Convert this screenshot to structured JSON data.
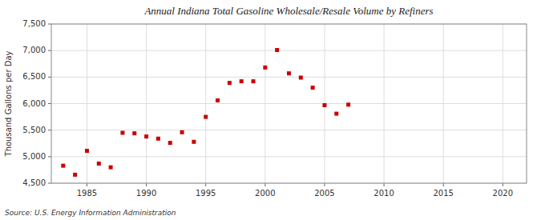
{
  "chart_data": {
    "type": "scatter",
    "title": "Annual Indiana Total Gasoline Wholesale/Resale Volume by Refiners",
    "ylabel": "Thousand Gallons per Day",
    "source": "Source: U.S. Energy Information Administration",
    "color": "#cc0000",
    "marker": "square",
    "grid": true,
    "x": [
      1983,
      1984,
      1985,
      1986,
      1987,
      1988,
      1989,
      1990,
      1991,
      1992,
      1993,
      1994,
      1995,
      1996,
      1997,
      1998,
      1999,
      2000,
      2001,
      2002,
      2003,
      2004,
      2005,
      2006,
      2007
    ],
    "values": [
      4830,
      4660,
      5110,
      4870,
      4800,
      5450,
      5440,
      5380,
      5340,
      5260,
      5460,
      5280,
      5750,
      6060,
      6390,
      6420,
      6420,
      6680,
      7010,
      6570,
      6490,
      6300,
      5970,
      5810,
      5980
    ],
    "xlim": [
      1982,
      2022
    ],
    "ylim": [
      4500,
      7500
    ],
    "xticks": [
      1985,
      1990,
      1995,
      2000,
      2005,
      2010,
      2015,
      2020
    ],
    "yticks": [
      {
        "value": 4500,
        "label": "4,500"
      },
      {
        "value": 5000,
        "label": "5,000"
      },
      {
        "value": 5500,
        "label": "5,500"
      },
      {
        "value": 6000,
        "label": "6,000"
      },
      {
        "value": 6500,
        "label": "6,500"
      },
      {
        "value": 7000,
        "label": "7,000"
      },
      {
        "value": 7500,
        "label": "7,500"
      }
    ]
  }
}
